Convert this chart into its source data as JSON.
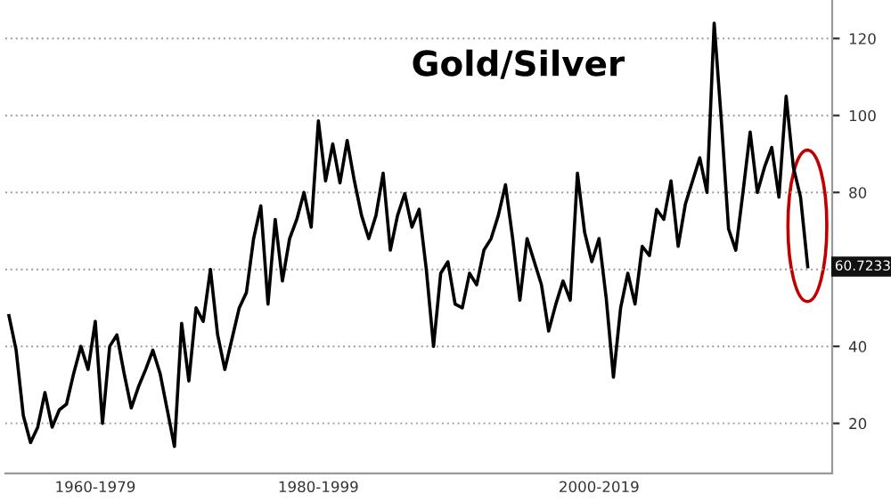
{
  "chart_data": {
    "type": "line",
    "title": "Gold/Silver",
    "categories": [
      null,
      null,
      null,
      null,
      null,
      null,
      null,
      null,
      null,
      null,
      null,
      null,
      "1960-1979",
      null,
      null,
      null,
      null,
      null,
      null,
      null,
      null,
      null,
      null,
      null,
      null,
      null,
      null,
      null,
      null,
      null,
      null,
      null,
      null,
      null,
      null,
      null,
      null,
      null,
      null,
      null,
      null,
      null,
      null,
      "1980-1999",
      null,
      null,
      null,
      null,
      null,
      null,
      null,
      null,
      null,
      null,
      null,
      null,
      null,
      null,
      null,
      null,
      null,
      null,
      null,
      null,
      null,
      null,
      null,
      null,
      null,
      null,
      null,
      null,
      null,
      null,
      null,
      null,
      null,
      null,
      null,
      null,
      null,
      null,
      "2000-2019",
      null,
      null,
      null,
      null,
      null,
      null,
      null,
      null,
      null,
      null,
      null,
      null,
      null,
      null,
      null,
      null,
      null,
      null,
      null,
      null,
      null,
      null,
      null,
      null,
      null,
      null,
      null,
      null,
      null
    ],
    "series": [
      {
        "color": "#000000",
        "values": [
          48,
          39,
          22,
          15,
          19,
          28,
          19,
          23.5,
          25,
          33,
          40,
          34,
          46.5,
          20,
          40,
          43,
          33,
          24,
          29.5,
          34,
          39,
          33,
          23.5,
          14,
          46,
          31,
          50,
          46.5,
          60,
          43,
          34,
          42,
          50,
          54,
          68,
          76.5,
          51,
          73,
          57,
          68,
          73,
          80,
          71,
          98.6,
          83,
          92.6,
          82.5,
          93.5,
          83,
          74,
          68,
          74,
          85,
          65,
          74,
          79.7,
          71,
          75.6,
          60,
          40,
          59,
          62,
          51,
          50,
          59,
          56,
          65,
          68,
          74,
          82,
          68,
          52,
          68,
          62,
          56,
          44,
          51,
          57,
          52,
          85,
          69.6,
          62,
          68,
          52.5,
          32,
          50,
          59,
          51,
          66,
          63.6,
          75.6,
          73,
          83,
          66,
          77,
          83,
          89,
          80,
          124,
          98.6,
          70.5,
          65,
          80,
          95.7,
          80,
          86.6,
          91.7,
          78.8,
          105,
          86.6,
          78.8,
          60.7233
        ]
      }
    ],
    "ylim": [
      7,
      130
    ],
    "yticks": [
      20,
      40,
      {
        "value": 60,
        "label": null
      },
      80,
      100,
      120
    ],
    "grid": "y",
    "annotations": [
      "60.7233"
    ]
  }
}
